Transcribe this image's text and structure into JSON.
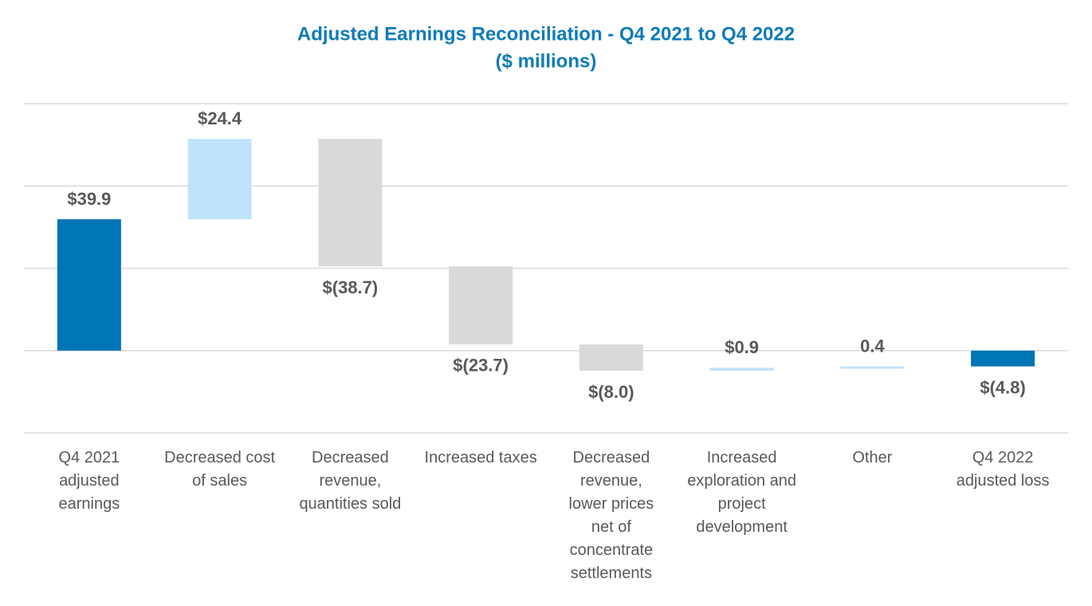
{
  "chart_data": {
    "type": "waterfall",
    "title": "Adjusted Earnings Reconciliation -  Q4 2021 to Q4 2022",
    "subtitle": "($ millions)",
    "categories": [
      "Q4 2021 adjusted earnings",
      "Decreased cost of sales",
      "Decreased revenue, quantities sold",
      "Increased taxes",
      "Decreased revenue, lower prices net of concentrate settlements",
      "Increased exploration and project development",
      "Other",
      "Q4 2022 adjusted loss"
    ],
    "values": [
      39.9,
      24.4,
      -38.7,
      -23.7,
      -8.0,
      0.9,
      0.4,
      -4.8
    ],
    "value_labels": [
      "$39.9",
      "$24.4",
      "$(38.7)",
      "$(23.7)",
      "$(8.0)",
      "$0.9",
      "0.4",
      "$(4.8)"
    ],
    "colors": [
      "#0076b6",
      "#bfe3fb",
      "#d9d9d9",
      "#d9d9d9",
      "#d9d9d9",
      "#bfe3fb",
      "#bfe3fb",
      "#0076b6"
    ],
    "ylim": [
      -25,
      75
    ],
    "yticks": [
      -25,
      0,
      25,
      50,
      75
    ],
    "grid": true
  }
}
